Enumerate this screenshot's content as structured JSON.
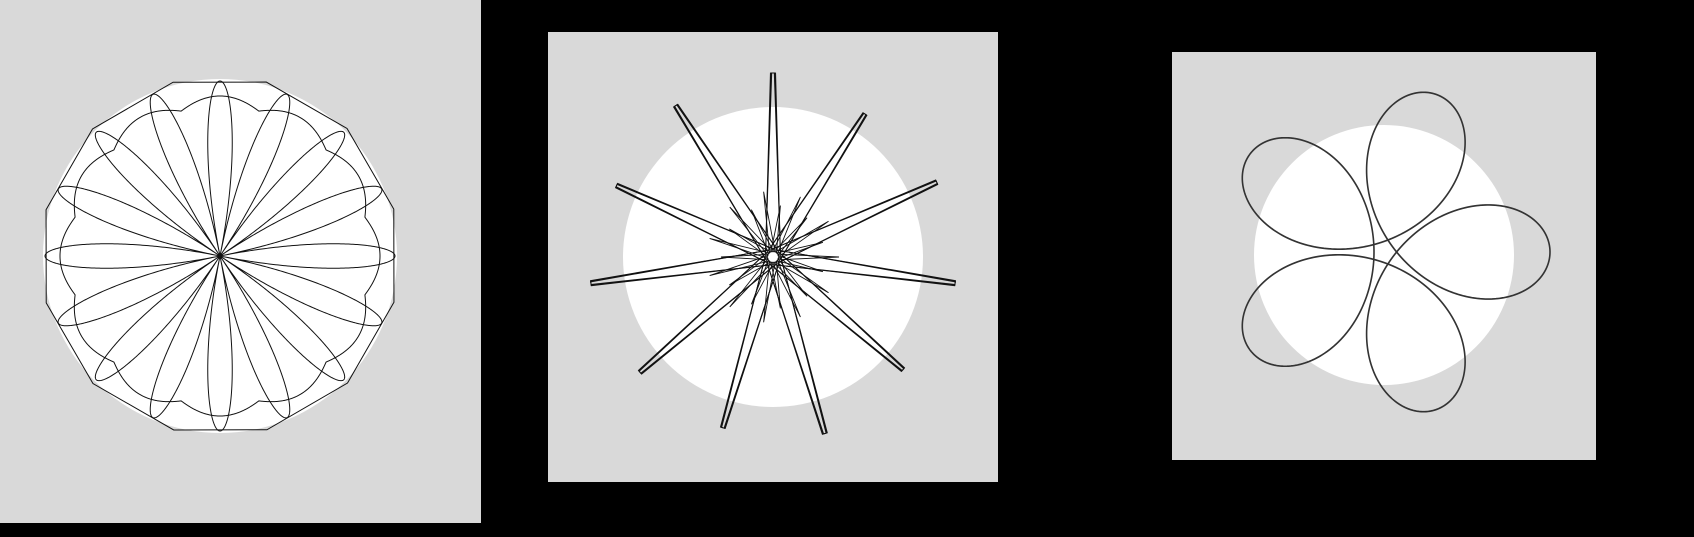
{
  "colors": {
    "background": "#000000",
    "panel": "#d9d9d9",
    "disc": "#ffffff",
    "stroke": "#111111",
    "stroke_dark": "#333333"
  },
  "panels": [
    {
      "name": "rose-polygon",
      "description_icon": "spirograph-rose-icon"
    },
    {
      "name": "star-burst",
      "description_icon": "spirograph-star-icon"
    },
    {
      "name": "hypotrochoid-ring",
      "description_icon": "spirograph-ring-icon"
    }
  ]
}
